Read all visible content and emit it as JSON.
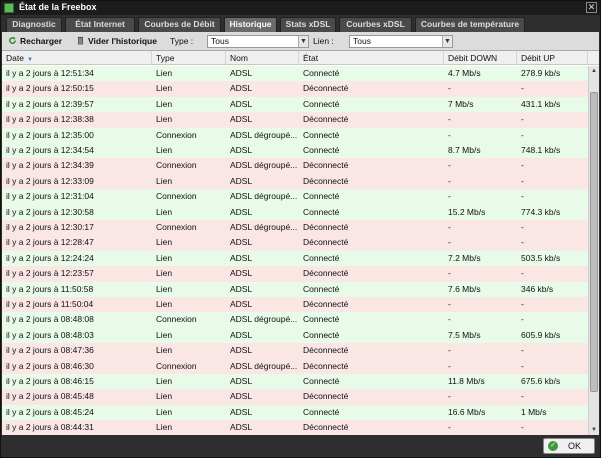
{
  "window": {
    "title": "État de la Freebox",
    "close_glyph": "✕"
  },
  "tabs": [
    {
      "label": "Diagnostic"
    },
    {
      "label": "État Internet"
    },
    {
      "label": "Courbes de Débit"
    },
    {
      "label": "Historique",
      "active": true
    },
    {
      "label": "Stats xDSL"
    },
    {
      "label": "Courbes xDSL"
    },
    {
      "label": "Courbes de température"
    }
  ],
  "toolbar": {
    "reload_label": "Recharger",
    "clear_label": "Vider l'historique",
    "type_label": "Type :",
    "type_value": "Tous",
    "link_label": "Lien :",
    "link_value": "Tous"
  },
  "grid": {
    "columns": [
      "Date",
      "Type",
      "Nom",
      "État",
      "Débit DOWN",
      "Débit UP"
    ],
    "sort_glyph": "▼",
    "rows": [
      {
        "date": "il y a 2 jours à 12:51:34",
        "type": "Lien",
        "nom": "ADSL",
        "etat": "Connecté",
        "down": "4.7 Mb/s",
        "up": "278.9 kb/s",
        "status": "ok"
      },
      {
        "date": "il y a 2 jours à 12:50:15",
        "type": "Lien",
        "nom": "ADSL",
        "etat": "Déconnecté",
        "down": "-",
        "up": "-",
        "status": "ko"
      },
      {
        "date": "il y a 2 jours à 12:39:57",
        "type": "Lien",
        "nom": "ADSL",
        "etat": "Connecté",
        "down": "7 Mb/s",
        "up": "431.1 kb/s",
        "status": "ok"
      },
      {
        "date": "il y a 2 jours à 12:38:38",
        "type": "Lien",
        "nom": "ADSL",
        "etat": "Déconnecté",
        "down": "-",
        "up": "-",
        "status": "ko"
      },
      {
        "date": "il y a 2 jours à 12:35:00",
        "type": "Connexion",
        "nom": "ADSL dégroupé...",
        "etat": "Connecté",
        "down": "-",
        "up": "-",
        "status": "ok"
      },
      {
        "date": "il y a 2 jours à 12:34:54",
        "type": "Lien",
        "nom": "ADSL",
        "etat": "Connecté",
        "down": "8.7 Mb/s",
        "up": "748.1 kb/s",
        "status": "ok"
      },
      {
        "date": "il y a 2 jours à 12:34:39",
        "type": "Connexion",
        "nom": "ADSL dégroupé...",
        "etat": "Déconnecté",
        "down": "-",
        "up": "-",
        "status": "ko"
      },
      {
        "date": "il y a 2 jours à 12:33:09",
        "type": "Lien",
        "nom": "ADSL",
        "etat": "Déconnecté",
        "down": "-",
        "up": "-",
        "status": "ko"
      },
      {
        "date": "il y a 2 jours à 12:31:04",
        "type": "Connexion",
        "nom": "ADSL dégroupé...",
        "etat": "Connecté",
        "down": "-",
        "up": "-",
        "status": "ok"
      },
      {
        "date": "il y a 2 jours à 12:30:58",
        "type": "Lien",
        "nom": "ADSL",
        "etat": "Connecté",
        "down": "15.2 Mb/s",
        "up": "774.3 kb/s",
        "status": "ok"
      },
      {
        "date": "il y a 2 jours à 12:30:17",
        "type": "Connexion",
        "nom": "ADSL dégroupé...",
        "etat": "Déconnecté",
        "down": "-",
        "up": "-",
        "status": "ko"
      },
      {
        "date": "il y a 2 jours à 12:28:47",
        "type": "Lien",
        "nom": "ADSL",
        "etat": "Déconnecté",
        "down": "-",
        "up": "-",
        "status": "ko"
      },
      {
        "date": "il y a 2 jours à 12:24:24",
        "type": "Lien",
        "nom": "ADSL",
        "etat": "Connecté",
        "down": "7.2 Mb/s",
        "up": "503.5 kb/s",
        "status": "ok"
      },
      {
        "date": "il y a 2 jours à 12:23:57",
        "type": "Lien",
        "nom": "ADSL",
        "etat": "Déconnecté",
        "down": "-",
        "up": "-",
        "status": "ko"
      },
      {
        "date": "il y a 2 jours à 11:50:58",
        "type": "Lien",
        "nom": "ADSL",
        "etat": "Connecté",
        "down": "7.6 Mb/s",
        "up": "346 kb/s",
        "status": "ok"
      },
      {
        "date": "il y a 2 jours à 11:50:04",
        "type": "Lien",
        "nom": "ADSL",
        "etat": "Déconnecté",
        "down": "-",
        "up": "-",
        "status": "ko"
      },
      {
        "date": "il y a 2 jours à 08:48:08",
        "type": "Connexion",
        "nom": "ADSL dégroupé...",
        "etat": "Connecté",
        "down": "-",
        "up": "-",
        "status": "ok"
      },
      {
        "date": "il y a 2 jours à 08:48:03",
        "type": "Lien",
        "nom": "ADSL",
        "etat": "Connecté",
        "down": "7.5 Mb/s",
        "up": "605.9 kb/s",
        "status": "ok"
      },
      {
        "date": "il y a 2 jours à 08:47:36",
        "type": "Lien",
        "nom": "ADSL",
        "etat": "Déconnecté",
        "down": "-",
        "up": "-",
        "status": "ko"
      },
      {
        "date": "il y a 2 jours à 08:46:30",
        "type": "Connexion",
        "nom": "ADSL dégroupé...",
        "etat": "Déconnecté",
        "down": "-",
        "up": "-",
        "status": "ko"
      },
      {
        "date": "il y a 2 jours à 08:46:15",
        "type": "Lien",
        "nom": "ADSL",
        "etat": "Connecté",
        "down": "11.8 Mb/s",
        "up": "675.6 kb/s",
        "status": "ok"
      },
      {
        "date": "il y a 2 jours à 08:45:48",
        "type": "Lien",
        "nom": "ADSL",
        "etat": "Déconnecté",
        "down": "-",
        "up": "-",
        "status": "ko"
      },
      {
        "date": "il y a 2 jours à 08:45:24",
        "type": "Lien",
        "nom": "ADSL",
        "etat": "Connecté",
        "down": "16.6 Mb/s",
        "up": "1 Mb/s",
        "status": "ok"
      },
      {
        "date": "il y a 2 jours à 08:44:31",
        "type": "Lien",
        "nom": "ADSL",
        "etat": "Déconnecté",
        "down": "-",
        "up": "-",
        "status": "ko"
      }
    ]
  },
  "footer": {
    "ok_label": "OK",
    "ok_glyph": "✓"
  },
  "colors": {
    "connected_row": "#e8fae8",
    "disconnected_row": "#fbe6e6",
    "accent": "#3a9a3a"
  }
}
